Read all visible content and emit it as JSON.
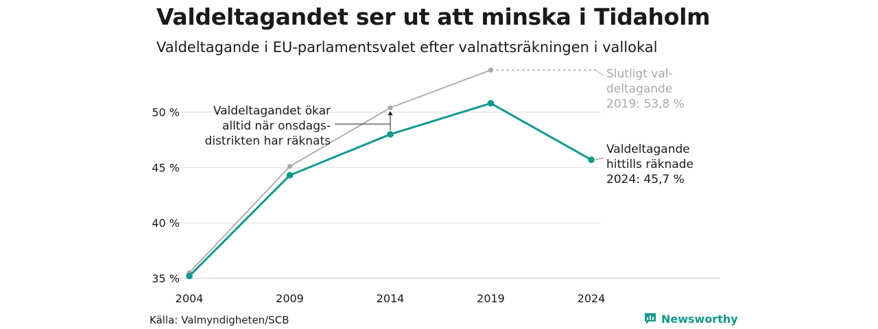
{
  "title": "Valdeltagandet ser ut att minska i Tidaholm",
  "subtitle": "Valdeltagande i EU-parlamentsvalet efter valnattsräkningen i vallokal",
  "source": "Källa: Valmyndigheten/SCB",
  "brand": "Newsworthy",
  "colors": {
    "counted": "#0f9a8d",
    "final": "#a8a8a8",
    "grid": "#e2e2e2"
  },
  "annotations": {
    "final_lines": [
      "Slutligt val-",
      "deltagande",
      "2019: 53,8 %"
    ],
    "counted_lines": [
      "Valdeltagande",
      "hittills räknade",
      "2024: 45,7 %"
    ],
    "wednesday_lines": [
      "Valdeltagandet ökar",
      "alltid när onsdags-",
      "distrikten har räknats"
    ]
  },
  "chart_data": {
    "type": "line",
    "title": "Valdeltagandet ser ut att minska i Tidaholm",
    "subtitle": "Valdeltagande i EU-parlamentsvalet efter valnattsräkningen i vallokal",
    "x": [
      2004,
      2009,
      2014,
      2019,
      2024
    ],
    "x_tick_labels": [
      "2004",
      "2009",
      "2014",
      "2019",
      "2024"
    ],
    "y_ticks": [
      35,
      40,
      45,
      50
    ],
    "y_tick_labels": [
      "35 %",
      "40 %",
      "45 %",
      "50 %"
    ],
    "ylim": [
      35,
      54
    ],
    "grid": true,
    "series": [
      {
        "values": [
          35.5,
          45.1,
          50.4,
          53.8,
          null
        ],
        "color": "#a8a8a8"
      },
      {
        "values": [
          35.2,
          44.3,
          48.0,
          50.8,
          45.7
        ],
        "color": "#0f9a8d"
      }
    ]
  }
}
